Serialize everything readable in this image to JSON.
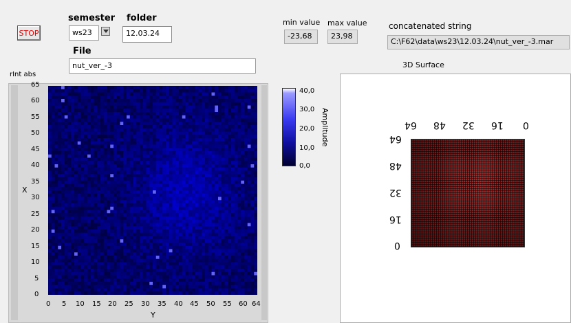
{
  "stop_button": {
    "label": "STOP"
  },
  "semester": {
    "label": "semester",
    "value": "ws23"
  },
  "folder": {
    "label": "folder",
    "value": "12.03.24"
  },
  "file": {
    "label": "File",
    "value": "nut_ver_-3"
  },
  "min_value": {
    "label": "min value",
    "value": "-23,68"
  },
  "max_value": {
    "label": "max value",
    "value": "23,98"
  },
  "concat": {
    "label": "concatenated string",
    "value": "C:\\F62\\data\\ws23\\12.03.24\\nut_ver_-3.mar"
  },
  "intensity_graph": {
    "title": "rInt  abs",
    "x_label": "Y",
    "y_label": "X",
    "x_ticks": [
      "0",
      "5",
      "10",
      "15",
      "20",
      "25",
      "30",
      "35",
      "40",
      "45",
      "50",
      "55",
      "60",
      "64"
    ],
    "y_ticks": [
      "0",
      "5",
      "10",
      "15",
      "20",
      "25",
      "30",
      "35",
      "40",
      "45",
      "50",
      "55",
      "60",
      "65"
    ],
    "colorbar": {
      "label": "Amplitude",
      "ticks": [
        "40,0",
        "30,0",
        "20,0",
        "10,0",
        "0,0"
      ]
    },
    "colors": {
      "low": "#000030",
      "mid": "#1010a0",
      "high": "#ffffff"
    }
  },
  "surface": {
    "title": "3D Surface",
    "top_ticks": [
      "64",
      "48",
      "32",
      "16",
      "0"
    ],
    "side_ticks": [
      "64",
      "48",
      "32",
      "16",
      "0"
    ]
  }
}
